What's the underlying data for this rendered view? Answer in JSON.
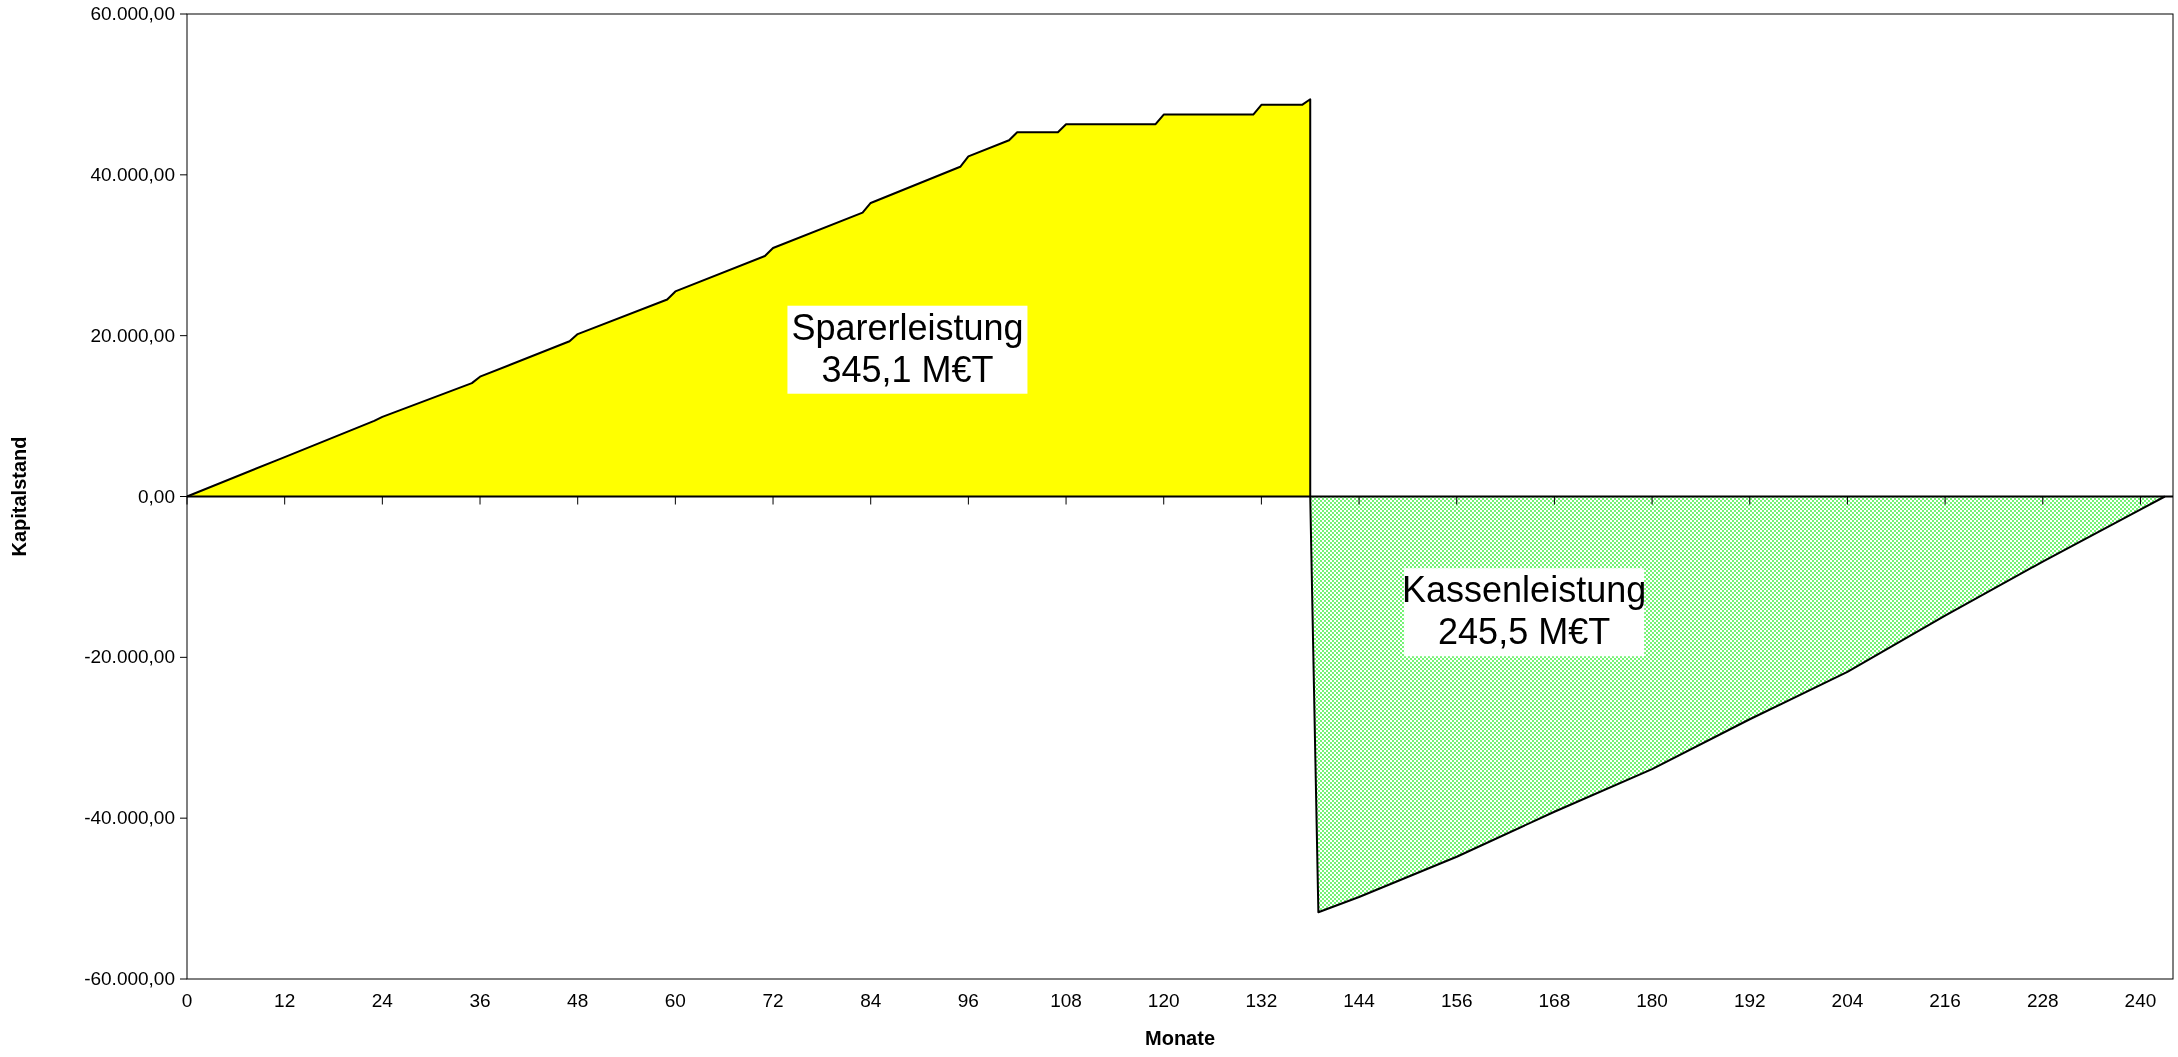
{
  "chart_data": {
    "type": "area",
    "xlabel": "Monate",
    "ylabel": "Kapitalstand",
    "series": [
      {
        "color": "#ffff00",
        "x": [
          0,
          11,
          12,
          23,
          24,
          35,
          36,
          47,
          48,
          59,
          60,
          71,
          72,
          83,
          84,
          95,
          96,
          101,
          102,
          107,
          108,
          119,
          120,
          131,
          132,
          137,
          138,
          138
        ],
        "values": [
          0,
          4500,
          4900,
          9400,
          9900,
          14100,
          14900,
          19300,
          20200,
          24500,
          25500,
          29900,
          30900,
          35300,
          36500,
          41000,
          42300,
          44300,
          45300,
          45300,
          46300,
          46300,
          47500,
          47500,
          48700,
          48700,
          49400,
          0
        ]
      },
      {
        "color": "#33ee33",
        "x": [
          138,
          139,
          144,
          156,
          168,
          180,
          192,
          204,
          216,
          228,
          243
        ],
        "values": [
          0,
          -51700,
          -49800,
          -44800,
          -39200,
          -33900,
          -27700,
          -21800,
          -14800,
          -8100,
          0
        ]
      }
    ],
    "xlim": [
      0,
      244
    ],
    "xticks": [
      0,
      12,
      24,
      36,
      48,
      60,
      72,
      84,
      96,
      108,
      120,
      132,
      144,
      156,
      168,
      180,
      192,
      204,
      216,
      228,
      240
    ],
    "ylim": [
      -60000,
      60000
    ],
    "yticks": [
      {
        "value": -60000,
        "label": "-60.000,00"
      },
      {
        "value": -40000,
        "label": "-40.000,00"
      },
      {
        "value": -20000,
        "label": "-20.000,00"
      },
      {
        "value": 0,
        "label": "0,00"
      },
      {
        "value": 20000,
        "label": "20.000,00"
      },
      {
        "value": 40000,
        "label": "40.000,00"
      },
      {
        "value": 60000,
        "label": "60.000,00"
      }
    ],
    "annotations": [
      "Sparerleistung\n345,1 M€T",
      "Kassenleistung\n245,5 M€T"
    ]
  }
}
